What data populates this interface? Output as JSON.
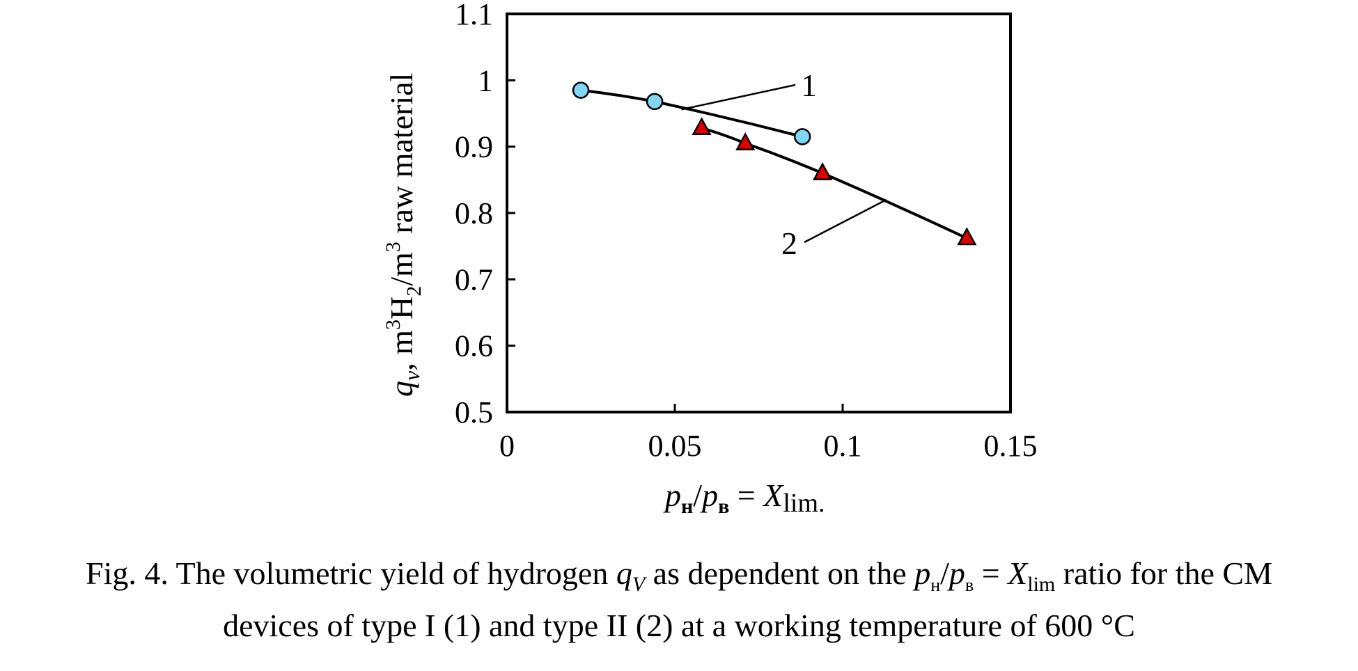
{
  "chart_data": {
    "type": "line",
    "xlabel": {
      "p1": "p",
      "s1": "н",
      "slash": "/",
      "p2": "p",
      "s2": "в",
      "eq": " = ",
      "x": "X",
      "lim": "lim."
    },
    "ylabel": {
      "q": "q",
      "v": "v",
      "comma": ", m",
      "sup1": "3",
      "h": "H",
      "sub2": "2",
      "per": "/m",
      "sup2": "3",
      "rest": " raw material"
    },
    "xlim": [
      0,
      0.15
    ],
    "ylim": [
      0.5,
      1.1
    ],
    "x_ticks": [
      "0",
      "0.05",
      "0.1",
      "0.15"
    ],
    "x_tick_values": [
      0,
      0.05,
      0.1,
      0.15
    ],
    "y_ticks": [
      "0.5",
      "0.6",
      "0.7",
      "0.8",
      "0.9",
      "1",
      "1.1"
    ],
    "y_tick_values": [
      0.5,
      0.6,
      0.7,
      0.8,
      0.9,
      1.0,
      1.1
    ],
    "grid": false,
    "legend": "none",
    "series": [
      {
        "label": "1",
        "marker": "circle",
        "color": "#7fd6f5",
        "points": [
          [
            0.022,
            0.985
          ],
          [
            0.044,
            0.968
          ],
          [
            0.088,
            0.915
          ]
        ],
        "callout_at": [
          0.052,
          0.956
        ]
      },
      {
        "label": "2",
        "marker": "triangle",
        "color": "#e00000",
        "points": [
          [
            0.058,
            0.928
          ],
          [
            0.071,
            0.905
          ],
          [
            0.094,
            0.86
          ],
          [
            0.137,
            0.762
          ]
        ],
        "callout_at": [
          0.113,
          0.82
        ]
      }
    ]
  },
  "caption": {
    "line1_a": "Fig. 4. The volumetric yield of hydrogen ",
    "q": "q",
    "V": "V",
    "line1_b": " as dependent on the ",
    "p1": "p",
    "s1": "н",
    "slash": "/",
    "p2": "p",
    "s2": "в",
    "eq": " = ",
    "X": "X",
    "lim": "lim",
    "line1_c": " ratio for the CM",
    "line2": "devices of type I (1) and type II (2) at a working temperature of 600 °C"
  }
}
